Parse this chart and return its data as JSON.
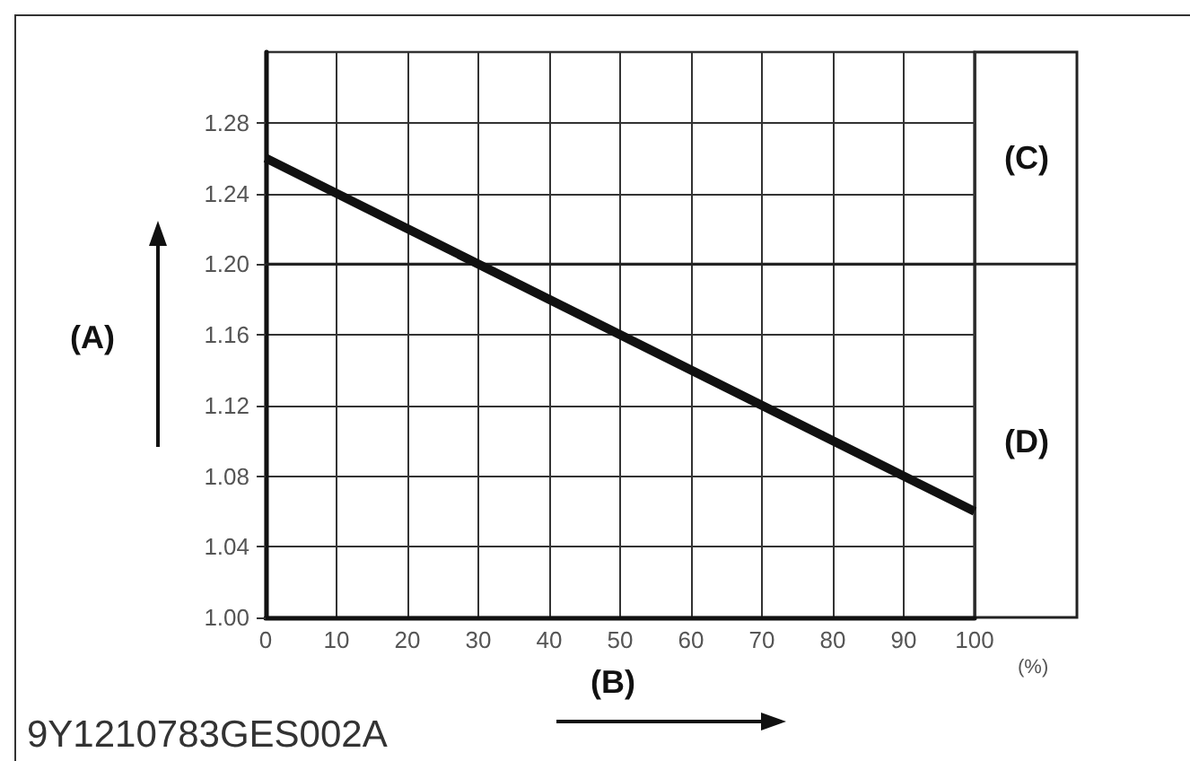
{
  "chart_data": {
    "type": "line",
    "xlabel": "(B)",
    "ylabel": "(A)",
    "annotations": [
      "(C)",
      "(D)",
      "(%)",
      "9Y1210783GES002A"
    ],
    "x": [
      0,
      100
    ],
    "series": [
      {
        "color": "#111111",
        "values": [
          1.26,
          1.06
        ]
      }
    ],
    "xlim": [
      0,
      100
    ],
    "xticks": [
      0,
      10,
      20,
      30,
      40,
      50,
      60,
      70,
      80,
      90,
      100
    ],
    "ylim": [
      1.0,
      1.32
    ],
    "yticks": [
      {
        "value": 1.0,
        "label": "1.00"
      },
      1.04,
      1.08,
      1.12,
      1.16,
      {
        "value": 1.2,
        "label": "1.20"
      },
      1.24,
      1.28
    ],
    "ref_lines": [
      {
        "axis": "y",
        "value": 1.2
      }
    ],
    "grid": true,
    "marker": "none",
    "line_style": "solid"
  }
}
